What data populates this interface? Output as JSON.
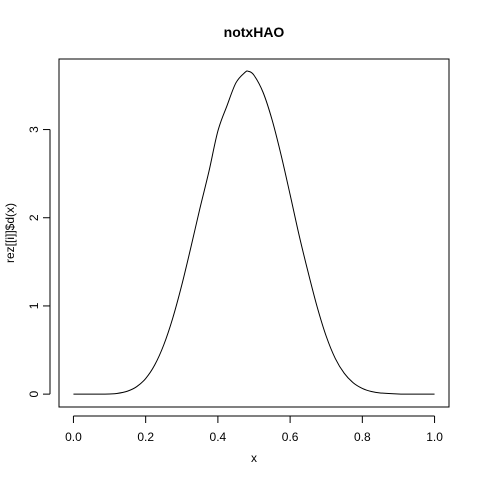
{
  "chart_data": {
    "type": "line",
    "title": "notxHAO",
    "xlabel": "x",
    "ylabel": "rez[[i]]$d(x)",
    "xlim": [
      -0.04,
      1.04
    ],
    "ylim": [
      -0.146,
      3.8
    ],
    "x_ticks": [
      0.0,
      0.2,
      0.4,
      0.6,
      0.8,
      1.0
    ],
    "x_tick_labels": [
      "0.0",
      "0.2",
      "0.4",
      "0.6",
      "0.8",
      "1.0"
    ],
    "y_ticks": [
      0,
      1,
      2,
      3
    ],
    "y_tick_labels": [
      "0",
      "1",
      "2",
      "3"
    ],
    "grid": false,
    "legend": "none",
    "series": [
      {
        "color": "#000000",
        "x": [
          0.0,
          0.05,
          0.1,
          0.12,
          0.15,
          0.175,
          0.2,
          0.225,
          0.25,
          0.275,
          0.3,
          0.325,
          0.35,
          0.375,
          0.4,
          0.425,
          0.45,
          0.475,
          0.485,
          0.5,
          0.525,
          0.55,
          0.575,
          0.6,
          0.625,
          0.65,
          0.675,
          0.7,
          0.725,
          0.75,
          0.775,
          0.8,
          0.825,
          0.85,
          0.9,
          0.95,
          1.0
        ],
        "y": [
          0.0,
          0.0,
          0.002,
          0.007,
          0.034,
          0.084,
          0.177,
          0.33,
          0.557,
          0.862,
          1.237,
          1.661,
          2.102,
          2.521,
          2.983,
          3.268,
          3.53,
          3.648,
          3.66,
          3.616,
          3.423,
          3.111,
          2.712,
          2.262,
          1.8,
          1.38,
          0.988,
          0.656,
          0.405,
          0.236,
          0.128,
          0.065,
          0.03,
          0.013,
          0.002,
          0.0,
          0.0
        ]
      }
    ]
  }
}
